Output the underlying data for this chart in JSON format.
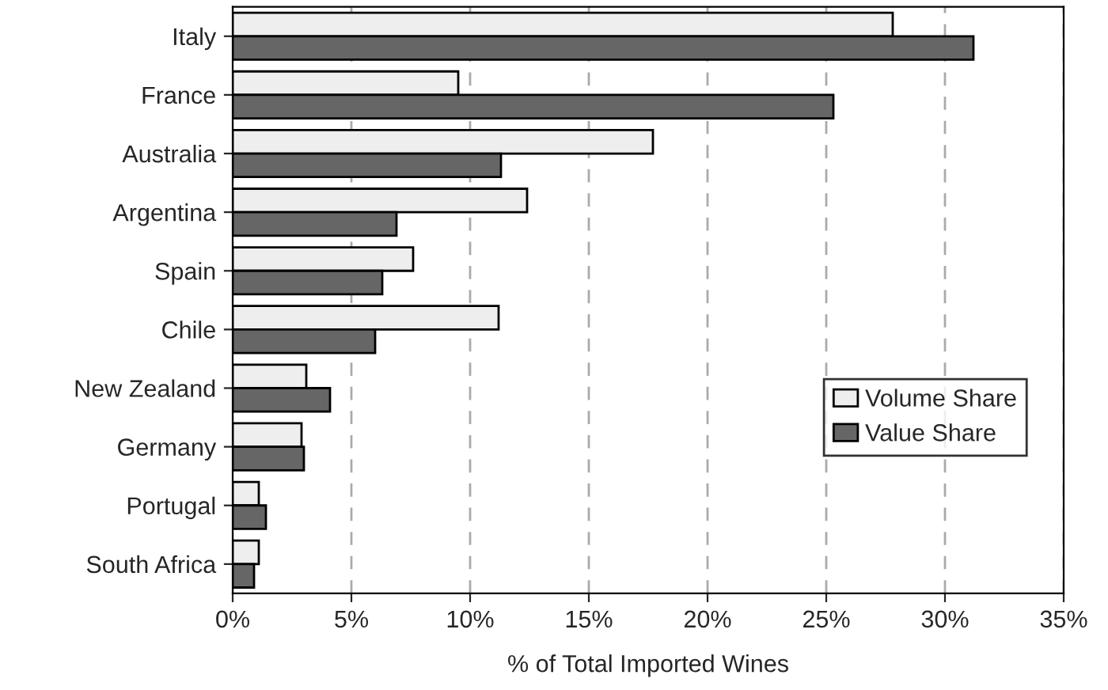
{
  "chart_data": {
    "type": "bar",
    "orientation": "horizontal",
    "xlabel": "% of Total Imported Wines",
    "categories": [
      "Italy",
      "France",
      "Australia",
      "Argentina",
      "Spain",
      "Chile",
      "New Zealand",
      "Germany",
      "Portugal",
      "South Africa"
    ],
    "series": [
      {
        "name": "Volume Share",
        "color": "#eeeeee",
        "values": [
          27.8,
          9.5,
          17.7,
          12.4,
          7.6,
          11.2,
          3.1,
          2.9,
          1.1,
          1.1
        ]
      },
      {
        "name": "Value Share",
        "color": "#666666",
        "values": [
          31.2,
          25.3,
          11.3,
          6.9,
          6.3,
          6.0,
          4.1,
          3.0,
          1.4,
          0.9
        ]
      }
    ],
    "xlim": [
      0,
      35
    ],
    "xticks": [
      {
        "value": 0,
        "label": "0%"
      },
      {
        "value": 5,
        "label": "5%"
      },
      {
        "value": 10,
        "label": "10%"
      },
      {
        "value": 15,
        "label": "15%"
      },
      {
        "value": 20,
        "label": "20%"
      },
      {
        "value": 25,
        "label": "25%"
      },
      {
        "value": 30,
        "label": "30%"
      },
      {
        "value": 35,
        "label": "35%"
      }
    ],
    "grid": "x",
    "legend": "right"
  }
}
